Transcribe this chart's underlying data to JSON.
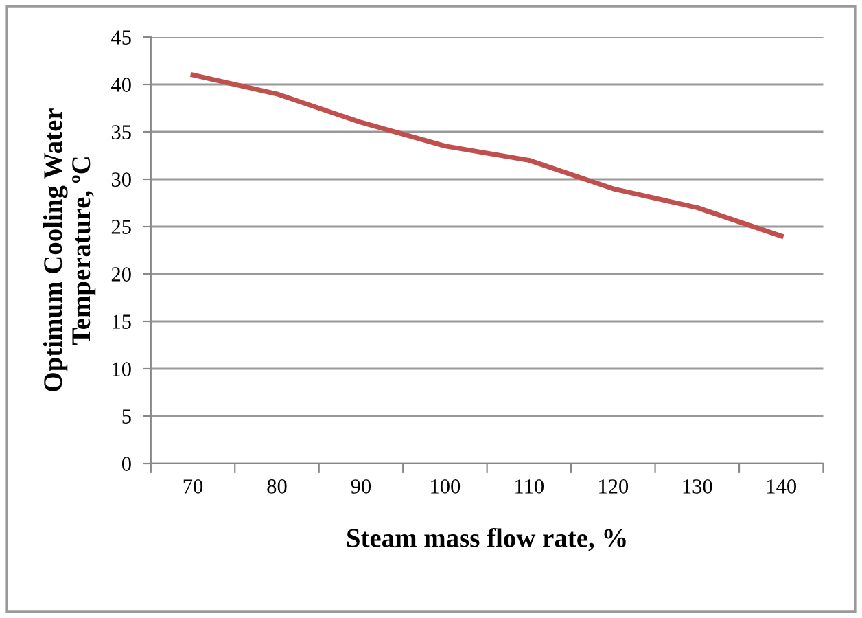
{
  "chart_data": {
    "type": "line",
    "xlabel": "Steam mass flow rate, %",
    "ylabel": "Optimum Cooling Water\nTemperature, ºC",
    "categories": [
      "70",
      "80",
      "90",
      "100",
      "110",
      "120",
      "130",
      "140"
    ],
    "series": [
      {
        "color": "#c0504d",
        "values": [
          41,
          39,
          36,
          33.5,
          32,
          29,
          27,
          24
        ]
      }
    ],
    "ylim": [
      0,
      45
    ],
    "yticks": [
      0,
      5,
      10,
      15,
      20,
      25,
      30,
      35,
      40,
      45
    ],
    "grid": "y",
    "legend": false,
    "marker": "none",
    "line_style": "solid"
  }
}
